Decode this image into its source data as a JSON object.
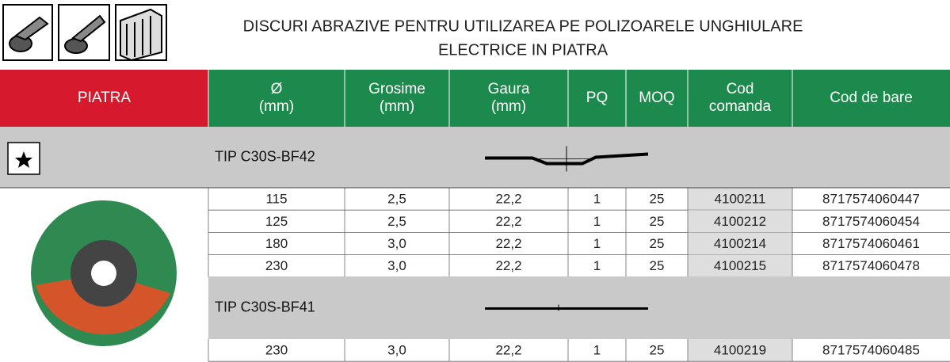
{
  "header": {
    "title": [
      "DISCURI ABRAZIVE PENTRU UTILIZAREA PE POLIZOARELE UNGHIULARE",
      "ELECTRICE IN PIATRA"
    ]
  },
  "table": {
    "columns": [
      [
        "PIATRA"
      ],
      [
        "Ø",
        "(mm)"
      ],
      [
        "Grosime",
        "(mm)"
      ],
      [
        "Gaura",
        "(mm)"
      ],
      [
        "PQ"
      ],
      [
        "MOQ"
      ],
      [
        "Cod",
        "comanda"
      ],
      [
        "Cod de bare"
      ]
    ],
    "sections": [
      {
        "label": "TIP C30S-BF42",
        "rows": [
          [
            "115",
            "2,5",
            "22,2",
            "1",
            "25",
            "4100211",
            "8717574060447"
          ],
          [
            "125",
            "2,5",
            "22,2",
            "1",
            "25",
            "4100212",
            "8717574060454"
          ],
          [
            "180",
            "3,0",
            "22,2",
            "1",
            "25",
            "4100214",
            "8717574060461"
          ],
          [
            "230",
            "3,0",
            "22,2",
            "1",
            "25",
            "4100215",
            "8717574060478"
          ]
        ]
      },
      {
        "label": "TIP C30S-BF41",
        "rows": [
          [
            "230",
            "3,0",
            "22,2",
            "1",
            "25",
            "4100219",
            "8717574060485"
          ]
        ]
      }
    ]
  }
}
